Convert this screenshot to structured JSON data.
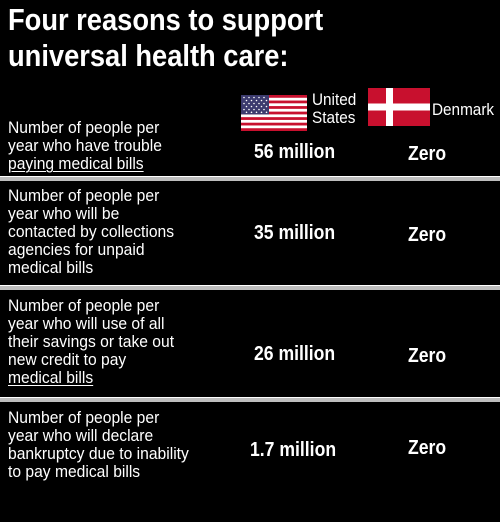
{
  "title": {
    "line1": "Four reasons to support",
    "line2": "universal health care:"
  },
  "columns": {
    "us": {
      "label_line1": "United",
      "label_line2": "States",
      "flag": "us-flag-icon"
    },
    "dk": {
      "label": "Denmark",
      "flag": "denmark-flag-icon"
    }
  },
  "colors": {
    "background": "#000000",
    "text": "#ffffff",
    "divider": "#bdbdbd",
    "flag_red": "#c8102e",
    "flag_blue": "#3c3b6e"
  },
  "rows": [
    {
      "lines": [
        "Number of people per",
        "year who have trouble",
        "paying medical bills"
      ],
      "us_value": "56 million",
      "dk_value": "Zero"
    },
    {
      "lines": [
        "Number of people per",
        "year who will be",
        "contacted by collections",
        "agencies for unpaid",
        "medical bills"
      ],
      "us_value": "35 million",
      "dk_value": "Zero"
    },
    {
      "lines": [
        "Number of people per",
        "year who will use of all",
        "their savings or take out",
        "new credit to pay",
        "medical bills"
      ],
      "us_value": "26 million",
      "dk_value": "Zero"
    },
    {
      "lines": [
        "Number of people per",
        "year who will declare",
        "bankruptcy due to inability",
        "to pay medical bills"
      ],
      "us_value": "1.7 million",
      "dk_value": "Zero"
    }
  ]
}
